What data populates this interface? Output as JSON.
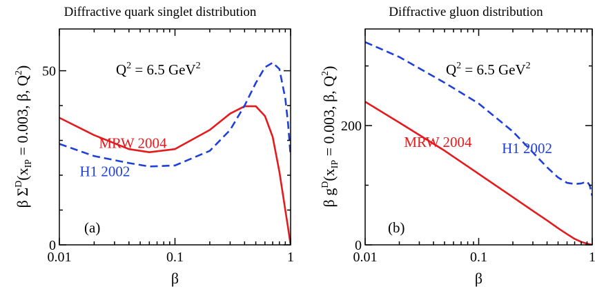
{
  "chart_data": [
    {
      "type": "line",
      "title": "Diffractive quark singlet distribution",
      "xlabel": "β",
      "ylabel_parts": {
        "base": "β Σ",
        "sup": "D",
        "open": "(x",
        "sub": "IP",
        "mid": " = 0.003, β, Q",
        "sup2": "2",
        "close": ")"
      },
      "xscale": "log",
      "xlim": [
        0.01,
        1
      ],
      "ylim": [
        0,
        62
      ],
      "xticks": [
        {
          "v": 0.01,
          "label": "0.01"
        },
        {
          "v": 0.1,
          "label": "0.1"
        },
        {
          "v": 1,
          "label": "1"
        }
      ],
      "yticks_major": [
        {
          "v": 0,
          "label": "0"
        },
        {
          "v": 50,
          "label": "50"
        }
      ],
      "yticks_minor": [
        10,
        20,
        30,
        40
      ],
      "panel_label": "(a)",
      "q2_label": {
        "base": "Q",
        "sup": "2",
        "mid": " = 6.5 GeV",
        "sup2": "2"
      },
      "series": [
        {
          "name": "MRW 2004",
          "color": "#e41a1c",
          "dash": "solid",
          "x": [
            0.01,
            0.02,
            0.04,
            0.06,
            0.1,
            0.2,
            0.3,
            0.4,
            0.5,
            0.6,
            0.7,
            0.8,
            0.9,
            0.95,
            1.0
          ],
          "y": [
            36.5,
            31.5,
            27.5,
            26.6,
            27.5,
            33.0,
            37.7,
            39.8,
            39.8,
            37.0,
            31.0,
            21.0,
            10.0,
            5.0,
            0.0
          ]
        },
        {
          "name": "H1 2002",
          "color": "#1f3fd8",
          "dash": "dashed",
          "x": [
            0.01,
            0.02,
            0.04,
            0.06,
            0.1,
            0.2,
            0.3,
            0.4,
            0.5,
            0.6,
            0.7,
            0.8,
            0.9,
            0.95,
            1.0
          ],
          "y": [
            29.0,
            25.5,
            23.5,
            22.5,
            22.8,
            27.0,
            33.0,
            40.0,
            46.5,
            51.0,
            52.3,
            50.5,
            42.0,
            35.0,
            25.5
          ]
        }
      ],
      "labels": [
        {
          "text": "MRW 2004",
          "series": 0,
          "x": 0.022,
          "y": 27.8
        },
        {
          "text": "H1 2002",
          "series": 1,
          "x": 0.015,
          "y": 19.7
        }
      ]
    },
    {
      "type": "line",
      "title": "Diffractive gluon distribution",
      "xlabel": "β",
      "ylabel_parts": {
        "base": "β g",
        "sup": "D",
        "open": "(x",
        "sub": "IP",
        "mid": " = 0.003, β, Q",
        "sup2": "2",
        "close": ")"
      },
      "xscale": "log",
      "xlim": [
        0.01,
        1
      ],
      "ylim": [
        0,
        362
      ],
      "xticks": [
        {
          "v": 0.01,
          "label": "0.01"
        },
        {
          "v": 0.1,
          "label": "0.1"
        },
        {
          "v": 1,
          "label": "1"
        }
      ],
      "yticks_major": [
        {
          "v": 0,
          "label": "0"
        },
        {
          "v": 200,
          "label": "200"
        }
      ],
      "yticks_minor": [
        100,
        300
      ],
      "panel_label": "(b)",
      "q2_label": {
        "base": "Q",
        "sup": "2",
        "mid": " = 6.5 GeV",
        "sup2": "2"
      },
      "series": [
        {
          "name": "MRW 2004",
          "color": "#e41a1c",
          "dash": "solid",
          "x": [
            0.01,
            0.02,
            0.05,
            0.1,
            0.2,
            0.3,
            0.4,
            0.5,
            0.6,
            0.7,
            0.8,
            0.9,
            1.0
          ],
          "y": [
            240,
            205,
            158,
            119,
            80,
            57,
            41,
            28,
            18,
            10,
            5,
            2,
            0
          ]
        },
        {
          "name": "H1 2002",
          "color": "#1f3fd8",
          "dash": "dashed",
          "x": [
            0.01,
            0.02,
            0.05,
            0.1,
            0.2,
            0.3,
            0.4,
            0.5,
            0.6,
            0.7,
            0.8,
            0.9,
            0.95,
            1.0
          ],
          "y": [
            340,
            315,
            272,
            237,
            190,
            155,
            130,
            113,
            104,
            102,
            103,
            106,
            100,
            82
          ]
        }
      ],
      "labels": [
        {
          "text": "MRW 2004",
          "series": 0,
          "x": 0.022,
          "y": 164
        },
        {
          "text": "H1 2002",
          "series": 1,
          "x": 0.16,
          "y": 154
        }
      ]
    }
  ]
}
